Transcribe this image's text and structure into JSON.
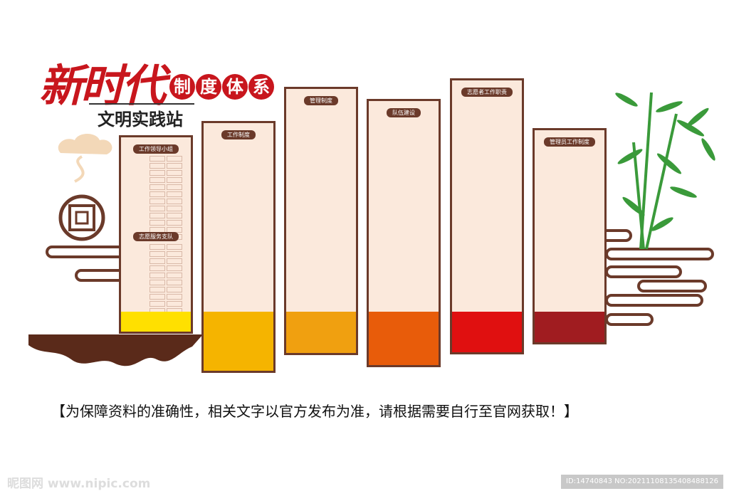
{
  "title": {
    "main": "新时代",
    "badge": [
      "制",
      "度",
      "体",
      "系"
    ],
    "sub": "文明实践站"
  },
  "panels": [
    {
      "labels": [
        "工作领导小组",
        "志愿服务支队"
      ],
      "band_color": "#ffe000"
    },
    {
      "labels": [
        "工作制度"
      ],
      "band_color": "#f5b400"
    },
    {
      "labels": [
        "管理制度"
      ],
      "band_color": "#f0a010"
    },
    {
      "labels": [
        "队伍建设"
      ],
      "band_color": "#e85c0a"
    },
    {
      "labels": [
        "志愿者工作职责"
      ],
      "band_color": "#e01010"
    },
    {
      "labels": [
        "管理员工作制度"
      ],
      "band_color": "#a01c20"
    }
  ],
  "disclaimer": "【为保障资料的准确性，相关文字以官方发布为准，请根据需要自行至官网获取！】",
  "watermark": {
    "logo": "昵图网 www.nipic.com",
    "id": "ID:14740843 NO:20211108135408488126"
  },
  "colors": {
    "brown": "#6b3a2a",
    "red": "#c8161d",
    "panel": "#fbe9dc",
    "bamboo": "#3a9a3a"
  }
}
